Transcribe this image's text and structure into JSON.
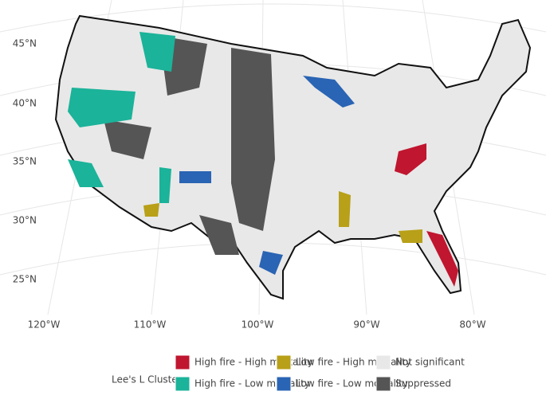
{
  "map": {
    "lat_labels": [
      "45°N",
      "40°N",
      "35°N",
      "30°N",
      "25°N"
    ],
    "lon_labels": [
      "120°W",
      "110°W",
      "100°W",
      "90°W",
      "80°W"
    ],
    "legend": {
      "title": "Lee's L Clusters",
      "items": [
        {
          "label": "High fire - High mortality",
          "color": "#c0162f"
        },
        {
          "label": "High fire - Low mortality",
          "color": "#1bb39a"
        },
        {
          "label": "Low fire - High mortality",
          "color": "#b8a018"
        },
        {
          "label": "Low fire - Low mortality",
          "color": "#2a64b4"
        },
        {
          "label": "Not significant",
          "color": "#e8e8e8"
        },
        {
          "label": "Suppressed",
          "color": "#555555"
        }
      ]
    }
  }
}
